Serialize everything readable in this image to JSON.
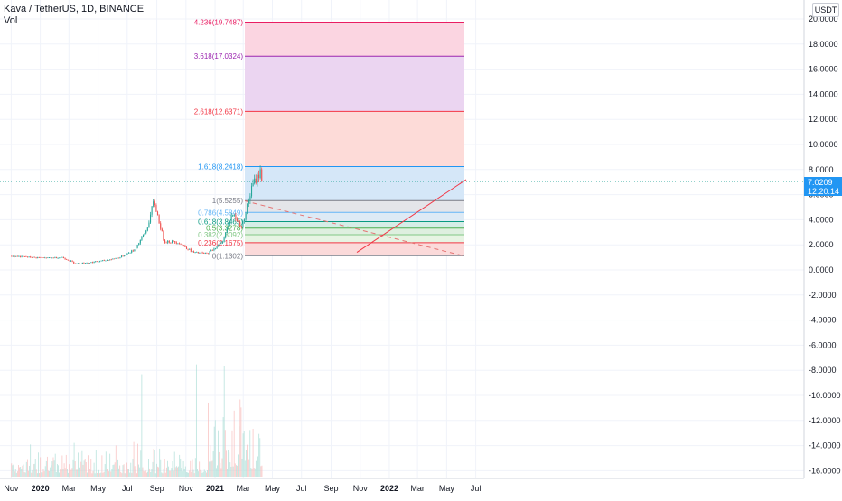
{
  "header": {
    "symbol": "Kava / TetherUS, 1D, BINANCE",
    "volume_label": "Vol",
    "currency_badge": "USDT"
  },
  "last_price": {
    "value": "7.0209",
    "countdown": "12:20:14",
    "color": "#2196f3"
  },
  "price_axis": {
    "ticks": [
      "20.0000",
      "18.0000",
      "16.0000",
      "14.0000",
      "12.0000",
      "10.0000",
      "8.0000",
      "6.0000",
      "4.0000",
      "2.0000",
      "0.0000",
      "-2.0000",
      "-4.0000",
      "-6.0000",
      "-8.0000",
      "-10.0000",
      "-12.0000",
      "-14.0000",
      "-16.0000"
    ]
  },
  "time_axis": {
    "labels": [
      "Nov",
      "2020",
      "Mar",
      "May",
      "Jul",
      "Sep",
      "Nov",
      "2021",
      "Mar",
      "May",
      "Jul",
      "Sep",
      "Nov",
      "2022",
      "Mar",
      "May",
      "Jul"
    ]
  },
  "fibonacci": {
    "levels": [
      {
        "label": "4.236(19.7487)",
        "value": 19.7487,
        "color": "#e91e63",
        "fill": "#fbd3df"
      },
      {
        "label": "3.618(17.0324)",
        "value": 17.0324,
        "color": "#9c27b0",
        "fill": "#ead3f0"
      },
      {
        "label": "2.618(12.6371)",
        "value": 12.6371,
        "color": "#f23645",
        "fill": "#fdd9d6"
      },
      {
        "label": "1.618(8.2418)",
        "value": 8.2418,
        "color": "#2196f3",
        "fill": "#d3e6f8"
      },
      {
        "label": "1(5.5255)",
        "value": 5.5255,
        "color": "#787b86",
        "fill": "#e3e4e8"
      },
      {
        "label": "0.786(4.5849)",
        "value": 4.5849,
        "color": "#64b5f6",
        "fill": "#dbe9f4"
      },
      {
        "label": "0.618(3.8465)",
        "value": 3.8465,
        "color": "#089981",
        "fill": "#d3ece6"
      },
      {
        "label": "0.5(3.3278)",
        "value": 3.3278,
        "color": "#4caf50",
        "fill": "#dceedd"
      },
      {
        "label": "0.382(2.8092)",
        "value": 2.8092,
        "color": "#81c784",
        "fill": "#e6f3e2"
      },
      {
        "label": "0.236(2.1675)",
        "value": 2.1675,
        "color": "#f23645",
        "fill": "#fbd8d8"
      },
      {
        "label": "0(1.1302)",
        "value": 1.1302,
        "color": "#787b86",
        "fill": ""
      }
    ]
  },
  "colors": {
    "up": "#26a69a",
    "down": "#ef5350",
    "trendline": "#f23645",
    "dashed_line": "#e57373",
    "grid": "#f0f3fa",
    "axis_text": "#131722"
  },
  "chart_data": {
    "type": "candlestick",
    "title": "Kava / TetherUS, 1D, BINANCE",
    "y_axis_range": [
      -16,
      20
    ],
    "x_range": [
      "2019-10",
      "2022-08"
    ],
    "price_path": [
      {
        "date": "2019-11-01",
        "price": 1.1
      },
      {
        "date": "2019-12-15",
        "price": 1.0
      },
      {
        "date": "2020-01-15",
        "price": 0.95
      },
      {
        "date": "2020-02-15",
        "price": 1.0
      },
      {
        "date": "2020-03-15",
        "price": 0.5
      },
      {
        "date": "2020-04-15",
        "price": 0.6
      },
      {
        "date": "2020-05-15",
        "price": 0.75
      },
      {
        "date": "2020-06-15",
        "price": 1.0
      },
      {
        "date": "2020-07-15",
        "price": 1.6
      },
      {
        "date": "2020-08-10",
        "price": 3.2
      },
      {
        "date": "2020-08-25",
        "price": 5.5
      },
      {
        "date": "2020-09-15",
        "price": 2.3
      },
      {
        "date": "2020-10-15",
        "price": 2.2
      },
      {
        "date": "2020-11-15",
        "price": 1.4
      },
      {
        "date": "2020-12-15",
        "price": 1.3
      },
      {
        "date": "2021-01-15",
        "price": 2.2
      },
      {
        "date": "2021-02-05",
        "price": 4.5
      },
      {
        "date": "2021-02-25",
        "price": 3.4
      },
      {
        "date": "2021-03-20",
        "price": 6.8
      },
      {
        "date": "2021-04-05",
        "price": 7.8
      },
      {
        "date": "2021-04-10",
        "price": 7.0209
      }
    ]
  }
}
